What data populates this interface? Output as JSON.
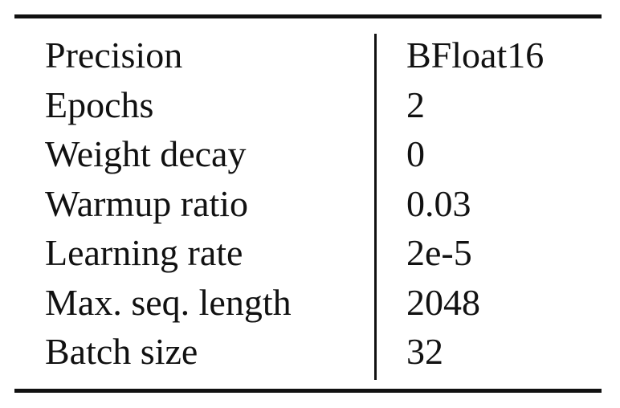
{
  "table": {
    "rows": [
      {
        "parameter": "Precision",
        "value": "BFloat16"
      },
      {
        "parameter": "Epochs",
        "value": "2"
      },
      {
        "parameter": "Weight decay",
        "value": "0"
      },
      {
        "parameter": "Warmup ratio",
        "value": "0.03"
      },
      {
        "parameter": "Learning rate",
        "value": "2e-5"
      },
      {
        "parameter": "Max. seq. length",
        "value": "2048"
      },
      {
        "parameter": "Batch size",
        "value": "32"
      }
    ]
  }
}
